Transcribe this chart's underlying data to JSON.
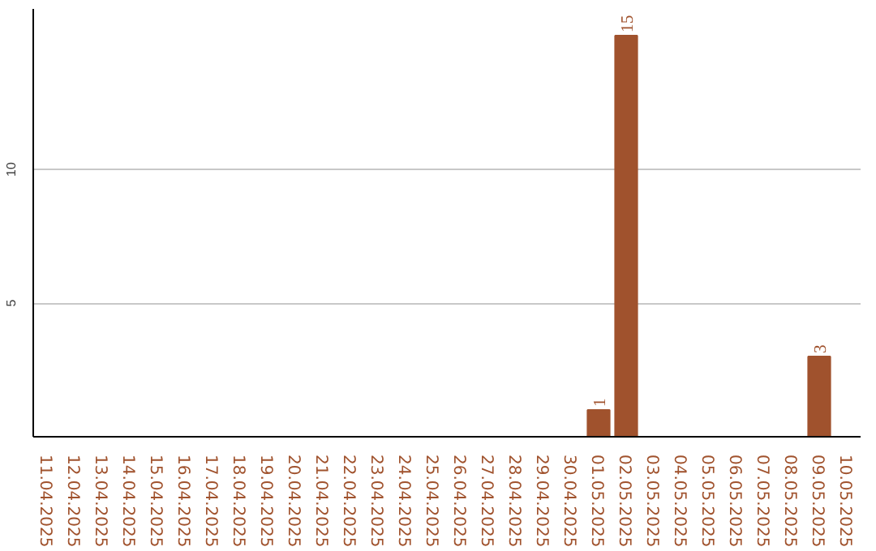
{
  "chart_data": {
    "type": "bar",
    "categories": [
      "11.04.2025",
      "12.04.2025",
      "13.04.2025",
      "14.04.2025",
      "15.04.2025",
      "16.04.2025",
      "17.04.2025",
      "18.04.2025",
      "19.04.2025",
      "20.04.2025",
      "21.04.2025",
      "22.04.2025",
      "23.04.2025",
      "24.04.2025",
      "25.04.2025",
      "26.04.2025",
      "27.04.2025",
      "28.04.2025",
      "29.04.2025",
      "30.04.2025",
      "01.05.2025",
      "02.05.2025",
      "03.05.2025",
      "04.05.2025",
      "05.05.2025",
      "06.05.2025",
      "07.05.2025",
      "08.05.2025",
      "09.05.2025",
      "10.05.2025"
    ],
    "values": [
      0,
      0,
      0,
      0,
      0,
      0,
      0,
      0,
      0,
      0,
      0,
      0,
      0,
      0,
      0,
      0,
      0,
      0,
      0,
      0,
      1,
      15,
      0,
      0,
      0,
      0,
      0,
      0,
      3,
      0
    ],
    "value_labels": [
      null,
      null,
      null,
      null,
      null,
      null,
      null,
      null,
      null,
      null,
      null,
      null,
      null,
      null,
      null,
      null,
      null,
      null,
      null,
      null,
      "1",
      "15",
      null,
      null,
      null,
      null,
      null,
      null,
      "3",
      null
    ],
    "color": "#a0522d",
    "ylim": [
      0,
      16
    ],
    "yticks": [
      5,
      10
    ],
    "grid": "y"
  }
}
